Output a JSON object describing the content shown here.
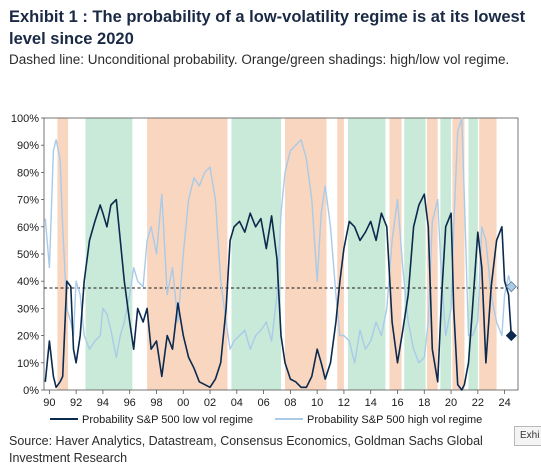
{
  "title": "Exhibit 1 : The probability of a low-volatility regime is at its lowest level since 2020",
  "subtitle": "Dashed line: Unconditional probability. Orange/green shadings: high/low vol regime.",
  "source": "Source: Haver Analytics, Datastream, Consensus Economics, Goldman Sachs Global Investment Research",
  "exhibit_tab": "Exhi",
  "colors": {
    "low_vol": "#0b2a4e",
    "high_vol": "#a9cbe8",
    "high_regime": "#f9d6c0",
    "low_regime": "#c9ead8",
    "dashed": "#1a1a1a"
  },
  "chart_data": {
    "type": "line",
    "title": "",
    "xlabel": "",
    "ylabel": "",
    "xlim": [
      1989.6,
      2025.0
    ],
    "ylim": [
      0,
      100
    ],
    "y_ticks": [
      0,
      10,
      20,
      30,
      40,
      50,
      60,
      70,
      80,
      90,
      100
    ],
    "y_tick_labels": [
      "0%",
      "10%",
      "20%",
      "30%",
      "40%",
      "50%",
      "60%",
      "70%",
      "80%",
      "90%",
      "100%"
    ],
    "x_ticks": [
      1990,
      1992,
      1994,
      1996,
      1998,
      2000,
      2002,
      2004,
      2006,
      2008,
      2010,
      2012,
      2014,
      2016,
      2018,
      2020,
      2022,
      2024
    ],
    "x_tick_labels": [
      "90",
      "92",
      "94",
      "96",
      "98",
      "00",
      "02",
      "04",
      "06",
      "08",
      "10",
      "12",
      "14",
      "16",
      "18",
      "20",
      "22",
      "24"
    ],
    "unconditional_probability": 37.5,
    "regimes": [
      {
        "type": "high",
        "start": 1990.6,
        "end": 1991.4
      },
      {
        "type": "low",
        "start": 1992.7,
        "end": 1996.2
      },
      {
        "type": "high",
        "start": 1997.3,
        "end": 2003.3
      },
      {
        "type": "low",
        "start": 2003.6,
        "end": 2007.3
      },
      {
        "type": "high",
        "start": 2007.6,
        "end": 2010.7
      },
      {
        "type": "high",
        "start": 2011.5,
        "end": 2012.0
      },
      {
        "type": "low",
        "start": 2012.3,
        "end": 2015.1
      },
      {
        "type": "high",
        "start": 2015.4,
        "end": 2016.3
      },
      {
        "type": "low",
        "start": 2016.5,
        "end": 2018.1
      },
      {
        "type": "high",
        "start": 2018.2,
        "end": 2019.0
      },
      {
        "type": "low",
        "start": 2019.2,
        "end": 2020.0
      },
      {
        "type": "high",
        "start": 2020.1,
        "end": 2021.0
      },
      {
        "type": "low",
        "start": 2021.3,
        "end": 2022.0
      },
      {
        "type": "high",
        "start": 2022.1,
        "end": 2023.4
      }
    ],
    "series": [
      {
        "name": "Probability S&P 500 low vol regime",
        "color": "#0b2a4e",
        "x": [
          1989.7,
          1990.0,
          1990.3,
          1990.5,
          1990.8,
          1991.0,
          1991.3,
          1991.6,
          1991.8,
          1992.0,
          1992.3,
          1992.6,
          1993.0,
          1993.4,
          1993.8,
          1994.0,
          1994.3,
          1994.6,
          1995.0,
          1995.3,
          1995.6,
          1996.0,
          1996.3,
          1996.6,
          1997.0,
          1997.3,
          1997.6,
          1998.0,
          1998.4,
          1998.8,
          1999.2,
          1999.6,
          2000.0,
          2000.4,
          2000.8,
          2001.2,
          2001.6,
          2002.0,
          2002.4,
          2002.8,
          2003.2,
          2003.5,
          2003.8,
          2004.2,
          2004.6,
          2005.0,
          2005.4,
          2005.8,
          2006.2,
          2006.6,
          2007.0,
          2007.3,
          2007.6,
          2008.0,
          2008.4,
          2008.8,
          2009.2,
          2009.6,
          2010.0,
          2010.3,
          2010.6,
          2011.0,
          2011.4,
          2011.7,
          2012.0,
          2012.4,
          2012.8,
          2013.2,
          2013.6,
          2014.0,
          2014.4,
          2014.8,
          2015.2,
          2015.6,
          2016.0,
          2016.4,
          2016.8,
          2017.2,
          2017.6,
          2018.0,
          2018.3,
          2018.6,
          2019.0,
          2019.3,
          2019.6,
          2020.0,
          2020.2,
          2020.5,
          2020.8,
          2021.0,
          2021.3,
          2021.6,
          2022.0,
          2022.3,
          2022.6,
          2023.0,
          2023.4,
          2023.8,
          2024.0,
          2024.3,
          2024.5
        ],
        "values": [
          3,
          18,
          5,
          1,
          3,
          5,
          40,
          38,
          15,
          10,
          20,
          40,
          55,
          62,
          68,
          65,
          60,
          68,
          70,
          55,
          40,
          25,
          15,
          30,
          25,
          30,
          15,
          18,
          5,
          20,
          15,
          32,
          20,
          12,
          8,
          3,
          2,
          1,
          4,
          10,
          30,
          55,
          60,
          62,
          58,
          65,
          60,
          63,
          52,
          64,
          48,
          20,
          10,
          4,
          3,
          1,
          1,
          5,
          15,
          10,
          4,
          10,
          25,
          40,
          52,
          62,
          60,
          55,
          58,
          62,
          55,
          65,
          60,
          25,
          10,
          22,
          35,
          60,
          68,
          72,
          60,
          15,
          3,
          35,
          60,
          65,
          30,
          2,
          0,
          2,
          10,
          30,
          58,
          45,
          10,
          38,
          55,
          60,
          40,
          35,
          20
        ]
      },
      {
        "name": "Probability S&P 500 high vol regime",
        "color": "#a9cbe8",
        "x": [
          1989.7,
          1990.0,
          1990.3,
          1990.5,
          1990.8,
          1991.0,
          1991.3,
          1991.6,
          1991.8,
          1992.0,
          1992.3,
          1992.6,
          1993.0,
          1993.4,
          1993.8,
          1994.0,
          1994.3,
          1994.6,
          1995.0,
          1995.3,
          1995.6,
          1996.0,
          1996.3,
          1996.6,
          1997.0,
          1997.3,
          1997.6,
          1998.0,
          1998.4,
          1998.8,
          1999.2,
          1999.6,
          2000.0,
          2000.4,
          2000.8,
          2001.2,
          2001.6,
          2002.0,
          2002.4,
          2002.8,
          2003.2,
          2003.5,
          2003.8,
          2004.2,
          2004.6,
          2005.0,
          2005.4,
          2005.8,
          2006.2,
          2006.6,
          2007.0,
          2007.3,
          2007.6,
          2008.0,
          2008.4,
          2008.8,
          2009.2,
          2009.6,
          2010.0,
          2010.3,
          2010.6,
          2011.0,
          2011.4,
          2011.7,
          2012.0,
          2012.4,
          2012.8,
          2013.2,
          2013.6,
          2014.0,
          2014.4,
          2014.8,
          2015.2,
          2015.6,
          2016.0,
          2016.4,
          2016.8,
          2017.2,
          2017.6,
          2018.0,
          2018.3,
          2018.6,
          2019.0,
          2019.3,
          2019.6,
          2020.0,
          2020.2,
          2020.5,
          2020.8,
          2021.0,
          2021.3,
          2021.6,
          2022.0,
          2022.3,
          2022.6,
          2023.0,
          2023.4,
          2023.8,
          2024.0,
          2024.3,
          2024.5
        ],
        "values": [
          63,
          45,
          88,
          92,
          85,
          60,
          30,
          25,
          20,
          40,
          35,
          20,
          15,
          18,
          20,
          30,
          28,
          22,
          12,
          20,
          25,
          35,
          45,
          40,
          38,
          55,
          60,
          50,
          72,
          35,
          45,
          25,
          50,
          70,
          78,
          75,
          80,
          82,
          70,
          40,
          25,
          15,
          18,
          20,
          22,
          15,
          20,
          22,
          25,
          18,
          35,
          65,
          80,
          88,
          90,
          92,
          85,
          70,
          40,
          65,
          75,
          60,
          35,
          20,
          20,
          18,
          10,
          22,
          15,
          18,
          25,
          20,
          30,
          55,
          70,
          45,
          25,
          15,
          10,
          12,
          25,
          62,
          70,
          40,
          20,
          30,
          60,
          95,
          100,
          70,
          20,
          20,
          25,
          60,
          55,
          35,
          25,
          20,
          35,
          42,
          38
        ]
      }
    ],
    "legend": [
      "Probability S&P 500 low vol regime",
      "Probability S&P 500 high vol regime"
    ],
    "legend_position": "bottom",
    "end_markers": [
      {
        "series": "Probability S&P 500 high vol regime",
        "x": 2024.5,
        "y": 38
      },
      {
        "series": "Probability S&P 500 low vol regime",
        "x": 2024.5,
        "y": 20
      }
    ]
  }
}
